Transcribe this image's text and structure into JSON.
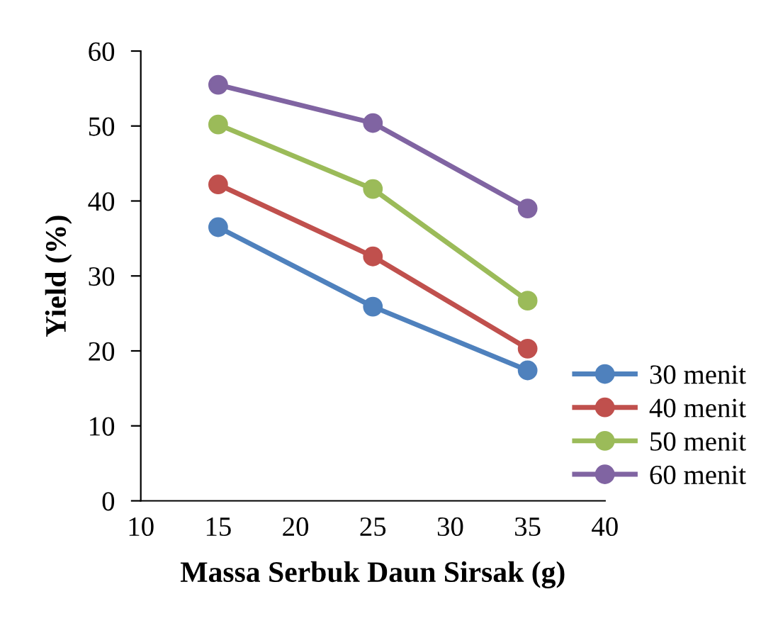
{
  "chart_data": {
    "type": "line",
    "xlabel": "Massa Serbuk Daun Sirsak (g)",
    "ylabel": "Yield (%)",
    "x": [
      15,
      25,
      35
    ],
    "series": [
      {
        "name": "30 menit",
        "color": "#4f81bd",
        "values": [
          36.5,
          25.9,
          17.4
        ]
      },
      {
        "name": "40 menit",
        "color": "#c0504d",
        "values": [
          42.2,
          32.6,
          20.3
        ]
      },
      {
        "name": "50 menit",
        "color": "#9bbb59",
        "values": [
          50.2,
          41.6,
          26.7
        ]
      },
      {
        "name": "60 menit",
        "color": "#8064a2",
        "values": [
          55.5,
          50.4,
          39.0
        ]
      }
    ],
    "xlim": [
      10,
      40
    ],
    "xticks": [
      10,
      15,
      20,
      25,
      30,
      35,
      40
    ],
    "ylim": [
      0,
      60
    ],
    "yticks": [
      0,
      10,
      20,
      30,
      40,
      50,
      60
    ],
    "grid": false,
    "legend": "bottom right",
    "marker": "circle",
    "line_style": "solid"
  }
}
